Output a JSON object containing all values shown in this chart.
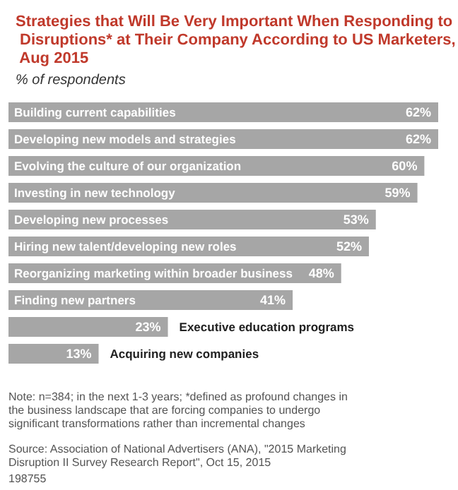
{
  "chart_data": {
    "type": "bar",
    "orientation": "horizontal",
    "title": "Strategies that Will Be Very Important When Responding to Disruptions* at Their Company According to US Marketers, Aug 2015",
    "subtitle": "% of respondents",
    "categories": [
      "Building current capabilities",
      "Developing new models and strategies",
      "Evolving the culture of our organization",
      "Investing in new technology",
      "Developing new processes",
      "Hiring new talent/developing new roles",
      "Reorganizing marketing within broader business",
      "Finding new partners",
      "Executive education programs",
      "Acquiring new companies"
    ],
    "values": [
      62,
      62,
      60,
      59,
      53,
      52,
      48,
      41,
      23,
      13
    ],
    "value_labels": [
      "62%",
      "62%",
      "60%",
      "59%",
      "53%",
      "52%",
      "48%",
      "41%",
      "23%",
      "13%"
    ],
    "color": "#a6a6a6",
    "annotations": [
      "Note: n=384; in the next 1-3 years; *defined as profound changes in the business landscape that are forcing companies to undergo significant transformations rather than incremental changes",
      "Source: Association of National Advertisers (ANA), \"2015 Marketing Disruption II Survey Research Report\", Oct 15, 2015",
      "198755"
    ]
  }
}
